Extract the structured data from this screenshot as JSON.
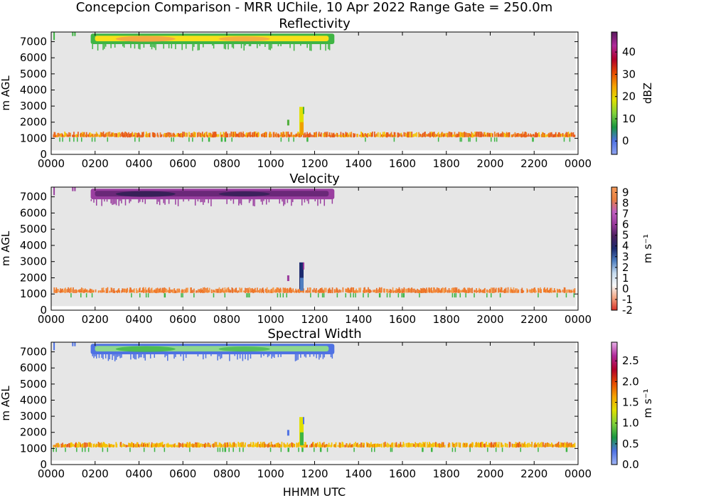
{
  "figure": {
    "suptitle": "Concepcion Comparison - MRR UChile, 10 Apr 2022 Range Gate = 250.0m",
    "xlabel": "HHMM UTC"
  },
  "chart_data": [
    {
      "type": "heatmap",
      "title": "Reflectivity",
      "ylabel": "m AGL",
      "xlim": [
        0,
        2400
      ],
      "ylim": [
        0,
        7600
      ],
      "xticks": [
        "0000",
        "0200",
        "0400",
        "0600",
        "0800",
        "1000",
        "1200",
        "1400",
        "1600",
        "1800",
        "2000",
        "2200",
        "0000"
      ],
      "yticks": [
        "0",
        "1000",
        "2000",
        "3000",
        "4000",
        "5000",
        "6000",
        "7000"
      ],
      "background": "#e6e6e6",
      "colorbar": {
        "label": "dBZ",
        "range": [
          -6,
          49
        ],
        "ticks": [
          "0",
          "10",
          "20",
          "30",
          "40"
        ],
        "tick_values": [
          0,
          10,
          20,
          30,
          40
        ],
        "stops": [
          "#8fa3f0",
          "#4f72e3",
          "#1a9641",
          "#7fd13b",
          "#e0e000",
          "#f5a300",
          "#e64a00",
          "#b0002c",
          "#b02a9a",
          "#5a1a5e"
        ]
      },
      "features": [
        {
          "label": "upper layer",
          "time_start": 180,
          "time_end": 1290,
          "height_bottom": 6850,
          "height_top": 7500,
          "edge_color": "#3fb544",
          "core_color": "#f7e01b",
          "hot_color": "#f29c4a"
        },
        {
          "label": "low layer",
          "time_start": 0,
          "time_end": 2400,
          "height_bottom": 1000,
          "height_top": 1300,
          "colors": [
            "#e85a1a",
            "#f08020",
            "#e85a1a",
            "#f5c400"
          ]
        },
        {
          "label": "convective column",
          "time": 1140,
          "height_bottom": 1000,
          "height_top": 2950,
          "colors": [
            "#e0e000",
            "#f0a000",
            "#4fae3a"
          ]
        }
      ]
    },
    {
      "type": "heatmap",
      "title": "Velocity",
      "ylabel": "m AGL",
      "xlim": [
        0,
        2400
      ],
      "ylim": [
        0,
        7600
      ],
      "xticks": [
        "0000",
        "0200",
        "0400",
        "0600",
        "0800",
        "1000",
        "1200",
        "1400",
        "1600",
        "1800",
        "2000",
        "2200",
        "0000"
      ],
      "yticks": [
        "0",
        "1000",
        "2000",
        "3000",
        "4000",
        "5000",
        "6000",
        "7000"
      ],
      "background": "#e6e6e6",
      "colorbar": {
        "label": "m s⁻¹",
        "range": [
          -2,
          9.5
        ],
        "ticks": [
          "-2",
          "-1",
          "0",
          "1",
          "2",
          "3",
          "4",
          "5",
          "6",
          "7",
          "8",
          "9"
        ],
        "tick_values": [
          -2,
          -1,
          0,
          1,
          2,
          3,
          4,
          5,
          6,
          7,
          8,
          9
        ],
        "stops": [
          "#d73027",
          "#f4a582",
          "#f7f7f7",
          "#c6dbef",
          "#4f7fc1",
          "#1c2a6e",
          "#4a1f5e",
          "#9a3a9c",
          "#c060c0",
          "#e88040",
          "#f59a5a"
        ]
      },
      "features": [
        {
          "label": "upper layer",
          "time_start": 180,
          "time_end": 1290,
          "height_bottom": 6850,
          "height_top": 7500,
          "edge_color": "#9a3fa0",
          "core_color": "#6a2878",
          "hot_color": "#2a1e50"
        },
        {
          "label": "low layer",
          "time_start": 0,
          "time_end": 2400,
          "height_bottom": 1000,
          "height_top": 1300,
          "colors": [
            "#f07a2a",
            "#f59a4a",
            "#f07a2a",
            "#e8702a"
          ]
        },
        {
          "label": "convective column",
          "time": 1140,
          "height_bottom": 1000,
          "height_top": 2950,
          "colors": [
            "#1c2a6e",
            "#4f7fc1",
            "#9a3a9c"
          ]
        }
      ]
    },
    {
      "type": "heatmap",
      "title": "Spectral Width",
      "ylabel": "m AGL",
      "xlim": [
        0,
        2400
      ],
      "ylim": [
        0,
        7600
      ],
      "xticks": [
        "0000",
        "0200",
        "0400",
        "0600",
        "0800",
        "1000",
        "1200",
        "1400",
        "1600",
        "1800",
        "2000",
        "2200",
        "0000"
      ],
      "yticks": [
        "0",
        "1000",
        "2000",
        "3000",
        "4000",
        "5000",
        "6000",
        "7000"
      ],
      "background": "#e6e6e6",
      "colorbar": {
        "label": "m s⁻¹",
        "range": [
          0,
          2.95
        ],
        "ticks": [
          "0.0",
          "0.5",
          "1.0",
          "1.5",
          "2.0",
          "2.5"
        ],
        "tick_values": [
          0,
          0.5,
          1,
          1.5,
          2,
          2.5
        ],
        "stops": [
          "#9fb4f5",
          "#4f72e3",
          "#1a9641",
          "#7fd13b",
          "#e0e000",
          "#f5a300",
          "#e64a00",
          "#b0002c",
          "#b02a9a",
          "#e8b0e8"
        ]
      },
      "features": [
        {
          "label": "upper layer",
          "time_start": 180,
          "time_end": 1290,
          "height_bottom": 6850,
          "height_top": 7500,
          "edge_color": "#4f72e3",
          "core_color": "#8ed88e",
          "hot_color": "#3fb544"
        },
        {
          "label": "low layer",
          "time_start": 0,
          "time_end": 2400,
          "height_bottom": 1000,
          "height_top": 1300,
          "colors": [
            "#f5c400",
            "#e85a1a",
            "#f5c400",
            "#f0a000"
          ]
        },
        {
          "label": "convective column",
          "time": 1140,
          "height_bottom": 1000,
          "height_top": 2950,
          "colors": [
            "#e0e000",
            "#3fb544",
            "#4f72e3"
          ]
        }
      ]
    }
  ]
}
